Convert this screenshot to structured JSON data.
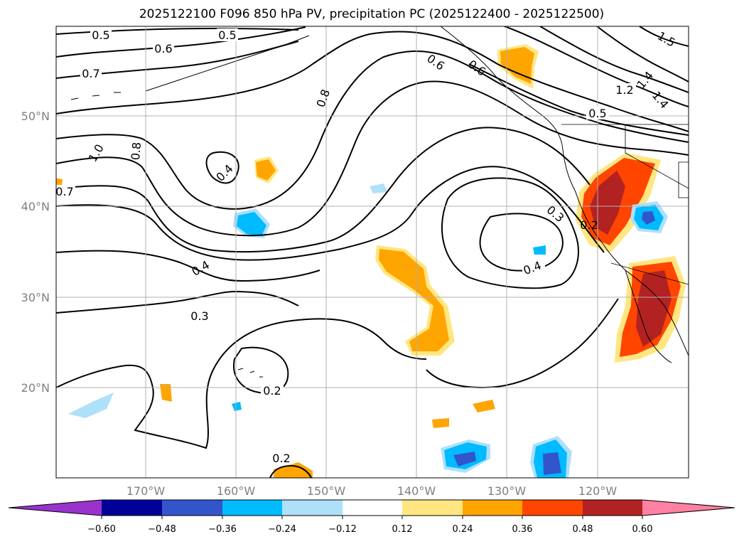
{
  "title": "2025122100 F096 850 hPa PV, precipitation PC (2025122400 - 2025122500)",
  "map": {
    "lon_labels": [
      "170°W",
      "160°W",
      "150°W",
      "140°W",
      "130°W",
      "120°W"
    ],
    "lat_labels": [
      "50°N",
      "40°N",
      "30°N",
      "20°N"
    ],
    "gridlines": true,
    "contour_labels": [
      "0.5",
      "0.5",
      "0.6",
      "0.6",
      "0.6",
      "0.7",
      "0.7",
      "0.8",
      "0.8",
      "1.0",
      "0.4",
      "0.4",
      "0.4",
      "0.3",
      "0.3",
      "0.2",
      "0.2",
      "0.2",
      "0.5",
      "1.2",
      "1.4",
      "1.4",
      "1.5"
    ]
  },
  "colorbar": {
    "ticks": [
      "−0.60",
      "−0.48",
      "−0.36",
      "−0.24",
      "−0.12",
      "0.12",
      "0.24",
      "0.36",
      "0.48",
      "0.60"
    ],
    "colors": [
      "#9933cc",
      "#000099",
      "#3355cc",
      "#00bbff",
      "#aee0fa",
      "#ffffff",
      "#ffe680",
      "#ffa500",
      "#ff4500",
      "#b22222",
      "#ff80a0",
      "#ff80a0"
    ]
  }
}
